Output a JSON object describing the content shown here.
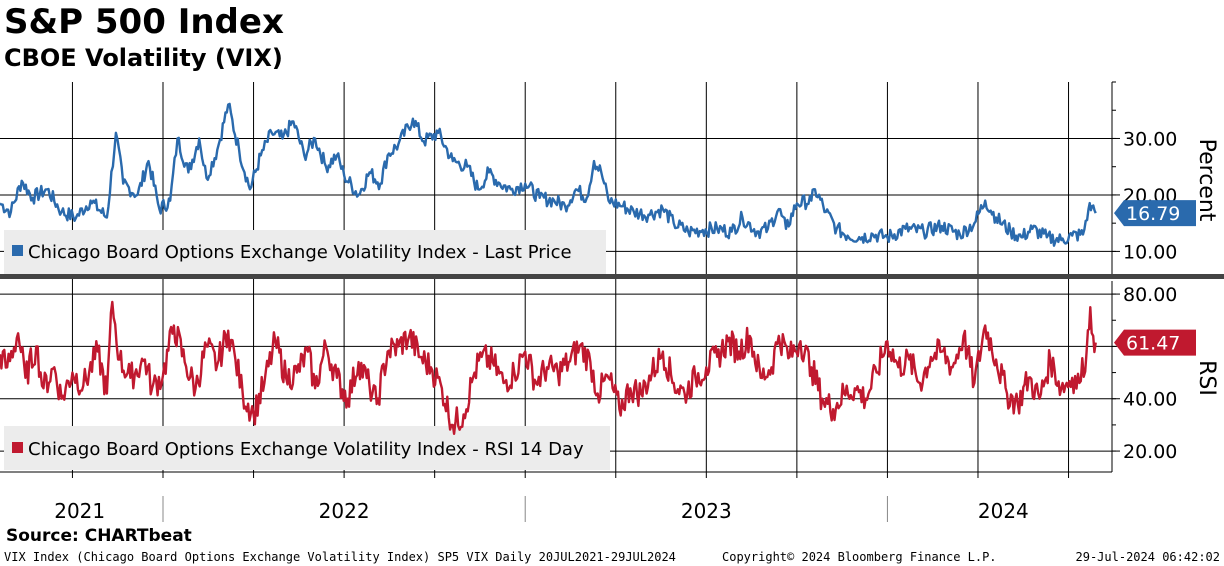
{
  "header": {
    "title": "S&P 500 Index",
    "subtitle": "CBOE Volatility (VIX)"
  },
  "chart_data": [
    {
      "type": "line",
      "name": "vix-last-price",
      "ylabel": "Percent",
      "ylim": [
        6,
        40
      ],
      "y_ticks": [
        10,
        20,
        30
      ],
      "y_tick_labels": [
        "10.00",
        "20.00",
        "30.00"
      ],
      "legend": "Chicago Board Options Exchange Volatility Index - Last Price",
      "legend_position": "bottom-left",
      "last_value": 16.79,
      "last_value_label": "16.79",
      "color": "#2a6aad",
      "x_start": 2021.55,
      "x_end": 2024.575,
      "keypoints": [
        [
          2021.55,
          18.5
        ],
        [
          2021.58,
          17.0
        ],
        [
          2021.61,
          22.5
        ],
        [
          2021.64,
          19.5
        ],
        [
          2021.68,
          21.0
        ],
        [
          2021.72,
          17.0
        ],
        [
          2021.76,
          16.0
        ],
        [
          2021.8,
          19.0
        ],
        [
          2021.845,
          16.0
        ],
        [
          2021.87,
          31.0
        ],
        [
          2021.89,
          22.0
        ],
        [
          2021.93,
          20.0
        ],
        [
          2021.96,
          26.0
        ],
        [
          2021.99,
          17.5
        ],
        [
          2022.02,
          19.0
        ],
        [
          2022.04,
          30.0
        ],
        [
          2022.07,
          24.0
        ],
        [
          2022.1,
          30.0
        ],
        [
          2022.12,
          23.0
        ],
        [
          2022.15,
          28.0
        ],
        [
          2022.18,
          36.0
        ],
        [
          2022.21,
          28.0
        ],
        [
          2022.24,
          21.0
        ],
        [
          2022.27,
          27.0
        ],
        [
          2022.3,
          31.0
        ],
        [
          2022.33,
          30.0
        ],
        [
          2022.36,
          33.0
        ],
        [
          2022.39,
          27.0
        ],
        [
          2022.42,
          30.0
        ],
        [
          2022.45,
          25.0
        ],
        [
          2022.48,
          27.0
        ],
        [
          2022.5,
          23.5
        ],
        [
          2022.54,
          20.0
        ],
        [
          2022.57,
          24.0
        ],
        [
          2022.6,
          22.0
        ],
        [
          2022.62,
          27.0
        ],
        [
          2022.65,
          29.0
        ],
        [
          2022.69,
          33.5
        ],
        [
          2022.72,
          29.5
        ],
        [
          2022.76,
          31.0
        ],
        [
          2022.8,
          26.0
        ],
        [
          2022.84,
          25.0
        ],
        [
          2022.87,
          21.0
        ],
        [
          2022.9,
          24.0
        ],
        [
          2022.93,
          22.0
        ],
        [
          2022.96,
          21.0
        ],
        [
          2023.0,
          22.0
        ],
        [
          2023.04,
          19.5
        ],
        [
          2023.08,
          19.0
        ],
        [
          2023.11,
          18.0
        ],
        [
          2023.14,
          21.0
        ],
        [
          2023.17,
          19.5
        ],
        [
          2023.19,
          26.0
        ],
        [
          2023.21,
          24.0
        ],
        [
          2023.23,
          19.0
        ],
        [
          2023.27,
          18.0
        ],
        [
          2023.3,
          17.0
        ],
        [
          2023.34,
          16.5
        ],
        [
          2023.38,
          17.5
        ],
        [
          2023.41,
          15.0
        ],
        [
          2023.45,
          13.5
        ],
        [
          2023.49,
          13.8
        ],
        [
          2023.53,
          14.0
        ],
        [
          2023.57,
          13.5
        ],
        [
          2023.6,
          16.0
        ],
        [
          2023.64,
          13.5
        ],
        [
          2023.67,
          14.0
        ],
        [
          2023.7,
          17.5
        ],
        [
          2023.72,
          14.0
        ],
        [
          2023.75,
          18.5
        ],
        [
          2023.79,
          19.0
        ],
        [
          2023.8,
          21.0
        ],
        [
          2023.83,
          17.0
        ],
        [
          2023.86,
          14.0
        ],
        [
          2023.89,
          12.8
        ],
        [
          2023.93,
          12.5
        ],
        [
          2023.96,
          13.0
        ],
        [
          2024.0,
          12.5
        ],
        [
          2024.05,
          14.0
        ],
        [
          2024.1,
          13.5
        ],
        [
          2024.15,
          14.5
        ],
        [
          2024.2,
          13.0
        ],
        [
          2024.24,
          15.0
        ],
        [
          2024.27,
          19.0
        ],
        [
          2024.3,
          16.0
        ],
        [
          2024.34,
          13.5
        ],
        [
          2024.37,
          12.5
        ],
        [
          2024.4,
          14.0
        ],
        [
          2024.44,
          12.5
        ],
        [
          2024.48,
          12.0
        ],
        [
          2024.51,
          12.8
        ],
        [
          2024.54,
          13.0
        ],
        [
          2024.555,
          17.5
        ],
        [
          2024.565,
          18.0
        ],
        [
          2024.575,
          16.79
        ]
      ]
    },
    {
      "type": "line",
      "name": "vix-rsi-14",
      "ylabel": "RSI",
      "ylim": [
        12,
        85
      ],
      "y_ticks": [
        20,
        40,
        60,
        80
      ],
      "y_tick_labels": [
        "20.00",
        "40.00",
        "60.00",
        "80.00"
      ],
      "legend": "Chicago Board Options Exchange Volatility Index - RSI 14 Day",
      "legend_position": "bottom-left",
      "last_value": 61.47,
      "last_value_label": "61.47",
      "color": "#c0192f",
      "x_start": 2021.55,
      "x_end": 2024.575,
      "keypoints": [
        [
          2021.55,
          57
        ],
        [
          2021.57,
          52
        ],
        [
          2021.6,
          65
        ],
        [
          2021.62,
          48
        ],
        [
          2021.65,
          60
        ],
        [
          2021.67,
          44
        ],
        [
          2021.7,
          52
        ],
        [
          2021.72,
          40
        ],
        [
          2021.75,
          50
        ],
        [
          2021.78,
          45
        ],
        [
          2021.82,
          58
        ],
        [
          2021.845,
          42
        ],
        [
          2021.86,
          77
        ],
        [
          2021.88,
          55
        ],
        [
          2021.91,
          48
        ],
        [
          2021.95,
          55
        ],
        [
          2021.97,
          44
        ],
        [
          2022.0,
          49
        ],
        [
          2022.03,
          68
        ],
        [
          2022.06,
          54
        ],
        [
          2022.09,
          44
        ],
        [
          2022.12,
          60
        ],
        [
          2022.15,
          53
        ],
        [
          2022.18,
          66
        ],
        [
          2022.2,
          55
        ],
        [
          2022.22,
          42
        ],
        [
          2022.25,
          34
        ],
        [
          2022.28,
          46
        ],
        [
          2022.31,
          62
        ],
        [
          2022.34,
          48
        ],
        [
          2022.37,
          50
        ],
        [
          2022.4,
          58
        ],
        [
          2022.42,
          44
        ],
        [
          2022.45,
          60
        ],
        [
          2022.48,
          48
        ],
        [
          2022.51,
          40
        ],
        [
          2022.54,
          54
        ],
        [
          2022.57,
          45
        ],
        [
          2022.59,
          38
        ],
        [
          2022.62,
          58
        ],
        [
          2022.65,
          60
        ],
        [
          2022.68,
          64
        ],
        [
          2022.71,
          56
        ],
        [
          2022.74,
          52
        ],
        [
          2022.77,
          44
        ],
        [
          2022.8,
          30
        ],
        [
          2022.83,
          34
        ],
        [
          2022.86,
          50
        ],
        [
          2022.88,
          56
        ],
        [
          2022.91,
          54
        ],
        [
          2022.94,
          46
        ],
        [
          2022.97,
          50
        ],
        [
          2023.0,
          58
        ],
        [
          2023.03,
          46
        ],
        [
          2023.06,
          52
        ],
        [
          2023.09,
          50
        ],
        [
          2023.12,
          54
        ],
        [
          2023.15,
          60
        ],
        [
          2023.18,
          54
        ],
        [
          2023.2,
          42
        ],
        [
          2023.23,
          48
        ],
        [
          2023.26,
          36
        ],
        [
          2023.29,
          44
        ],
        [
          2023.32,
          42
        ],
        [
          2023.35,
          50
        ],
        [
          2023.38,
          58
        ],
        [
          2023.41,
          46
        ],
        [
          2023.44,
          42
        ],
        [
          2023.47,
          48
        ],
        [
          2023.5,
          52
        ],
        [
          2023.53,
          56
        ],
        [
          2023.56,
          62
        ],
        [
          2023.59,
          58
        ],
        [
          2023.62,
          64
        ],
        [
          2023.65,
          48
        ],
        [
          2023.68,
          52
        ],
        [
          2023.7,
          64
        ],
        [
          2023.73,
          56
        ],
        [
          2023.76,
          62
        ],
        [
          2023.79,
          52
        ],
        [
          2023.82,
          40
        ],
        [
          2023.85,
          36
        ],
        [
          2023.88,
          42
        ],
        [
          2023.91,
          44
        ],
        [
          2023.94,
          40
        ],
        [
          2023.97,
          50
        ],
        [
          2024.0,
          62
        ],
        [
          2024.03,
          52
        ],
        [
          2024.06,
          55
        ],
        [
          2024.09,
          46
        ],
        [
          2024.12,
          56
        ],
        [
          2024.15,
          58
        ],
        [
          2024.18,
          52
        ],
        [
          2024.21,
          64
        ],
        [
          2024.24,
          46
        ],
        [
          2024.27,
          68
        ],
        [
          2024.3,
          55
        ],
        [
          2024.33,
          42
        ],
        [
          2024.36,
          38
        ],
        [
          2024.39,
          48
        ],
        [
          2024.42,
          40
        ],
        [
          2024.45,
          55
        ],
        [
          2024.48,
          44
        ],
        [
          2024.51,
          48
        ],
        [
          2024.53,
          46
        ],
        [
          2024.55,
          58
        ],
        [
          2024.56,
          75
        ],
        [
          2024.568,
          64
        ],
        [
          2024.575,
          61.47
        ]
      ]
    }
  ],
  "x_axis": {
    "range": [
      2021.55,
      2024.62
    ],
    "year_labels": [
      {
        "label": "2021",
        "at": 2021.77
      },
      {
        "label": "2022",
        "at": 2022.5
      },
      {
        "label": "2023",
        "at": 2023.5
      },
      {
        "label": "2024",
        "at": 2024.32
      }
    ],
    "year_separators": [
      2022.0,
      2023.0,
      2024.0
    ],
    "quarter_gridlines": [
      2021.75,
      2022.0,
      2022.25,
      2022.5,
      2022.75,
      2023.0,
      2023.25,
      2023.5,
      2023.75,
      2024.0,
      2024.25,
      2024.5
    ]
  },
  "footer": {
    "source": "Source: CHARTbeat",
    "left": "VIX Index (Chicago Board Options Exchange Volatility Index) SP5 VIX  Daily 20JUL2021-29JUL2024",
    "middle": "Copyright© 2024 Bloomberg Finance L.P.",
    "right": "29-Jul-2024 06:42:02"
  }
}
